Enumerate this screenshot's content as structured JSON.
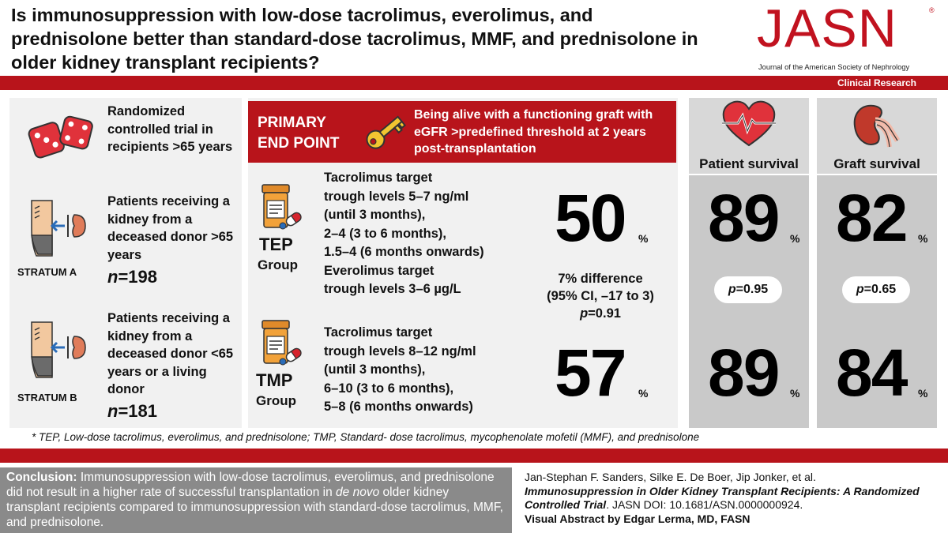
{
  "header": {
    "title": "Is immunosuppression with low-dose tacrolimus, everolimus, and prednisolone better than standard-dose tacrolimus, MMF, and prednisolone in older kidney transplant recipients?",
    "logo": "JASN",
    "logo_mark": "®",
    "journal_name": "Journal of the American Society of Nephrology",
    "category": "Clinical Research"
  },
  "left": {
    "design": "Randomized controlled trial in recipients >65 years",
    "stratum_a": {
      "label": "STRATUM A",
      "text": "Patients receiving a kidney from a deceased donor >65 years",
      "n_prefix": "n",
      "n_value": "=198"
    },
    "stratum_b": {
      "label": "STRATUM B",
      "text": "Patients receiving a kidney from a deceased donor <65 years or a living donor",
      "n_prefix": "n",
      "n_value": "=181"
    }
  },
  "endpoint": {
    "label_line1": "PRIMARY",
    "label_line2": "END POINT",
    "text": "Being alive with a functioning graft with eGFR >predefined threshold at 2 years post-transplantation"
  },
  "groups": {
    "tep": {
      "name": "TEP",
      "sub": "Group",
      "lines": [
        "Tacrolimus target",
        "trough levels 5–7 ng/ml",
        "(until 3 months),",
        "2–4 (3 to 6 months),",
        "1.5–4 (6 months onwards)",
        "Everolimus target",
        "trough levels 3–6 µg/L"
      ],
      "primary_value": "50",
      "patient_survival": "89",
      "graft_survival": "82"
    },
    "tmp": {
      "name": "TMP",
      "sub": "Group",
      "lines": [
        "Tacrolimus target",
        "trough levels 8–12 ng/ml",
        "(until 3 months),",
        "6–10 (3 to 6 months),",
        "5–8 (6 months onwards)"
      ],
      "primary_value": "57",
      "patient_survival": "89",
      "graft_survival": "84"
    }
  },
  "difference": {
    "line1": "7% difference",
    "line2": "(95% CI, –17 to 3)",
    "p_label": "p",
    "p_value": "=0.91"
  },
  "columns": {
    "patient": {
      "heading": "Patient survival",
      "p_label": "p",
      "p_value": "=0.95"
    },
    "graft": {
      "heading": "Graft survival",
      "p_label": "p",
      "p_value": "=0.65"
    }
  },
  "percent_sign": "%",
  "footnote": "* TEP, Low-dose tacrolimus, everolimus, and prednisolone; TMP, Standard- dose tacrolimus, mycophenolate mofetil (MMF), and prednisolone",
  "conclusion": {
    "label": "Conclusion:",
    "text_before": " Immunosuppression with low-dose tacrolimus, everolimus, and prednisolone did not result in a higher rate of successful transplantation in ",
    "italic": "de novo",
    "text_after": " older kidney transplant recipients compared to immunosuppression with standard-dose tacrolimus, MMF, and prednisolone."
  },
  "citation": {
    "authors": "Jan-Stephan F. Sanders, Silke E. De Boer, Jip Jonker, et al.",
    "article_title": "Immunosuppression in Older Kidney Transplant Recipients: A Randomized Controlled Trial",
    "doi": ". JASN DOI: 10.1681/ASN.0000000924.",
    "credit": "Visual Abstract by Edgar Lerma, MD, FASN"
  },
  "icons": [
    "dice-icon",
    "kidney-donor-icon",
    "key-icon",
    "pill-bottle-icon",
    "heart-icon",
    "kidney-icon"
  ],
  "colors": {
    "accent": "#b8141b",
    "panel": "#f1f1f1",
    "column_top": "#d8d8d8",
    "column_bottom": "#c9c9c9",
    "conclusion_bg": "#8a8a8a",
    "key": "#f2c531"
  }
}
